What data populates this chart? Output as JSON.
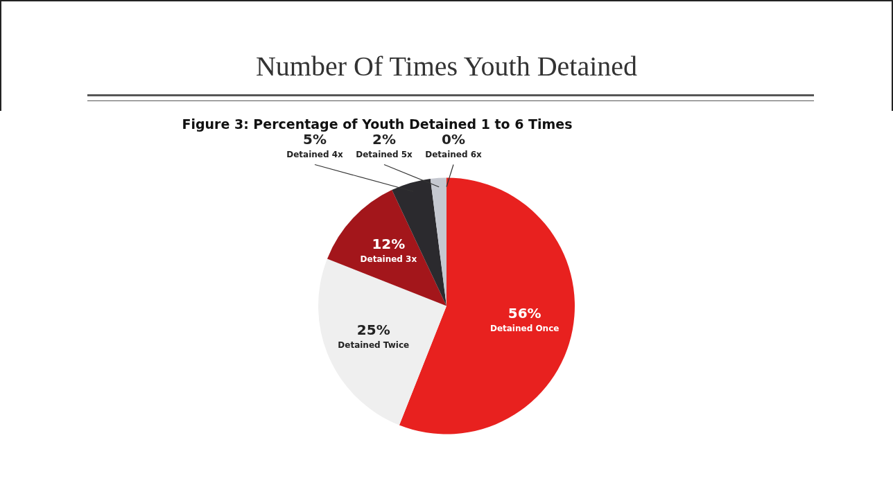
{
  "chart_data": {
    "type": "pie",
    "title": "Number Of Times Youth Detained",
    "subtitle": "Figure 3: Percentage of Youth Detained 1 to 6 Times",
    "categories": [
      "Detained Once",
      "Detained Twice",
      "Detained 3x",
      "Detained 4x",
      "Detained 5x",
      "Detained 6x"
    ],
    "values": [
      56,
      25,
      12,
      5,
      2,
      0
    ],
    "value_labels": [
      "56%",
      "25%",
      "12%",
      "5%",
      "2%",
      "0%"
    ],
    "colors": [
      "#e8211f",
      "#efefef",
      "#a3161b",
      "#2b2a2e",
      "#c5c8d0",
      "#8a8a8a"
    ],
    "legend": false
  }
}
